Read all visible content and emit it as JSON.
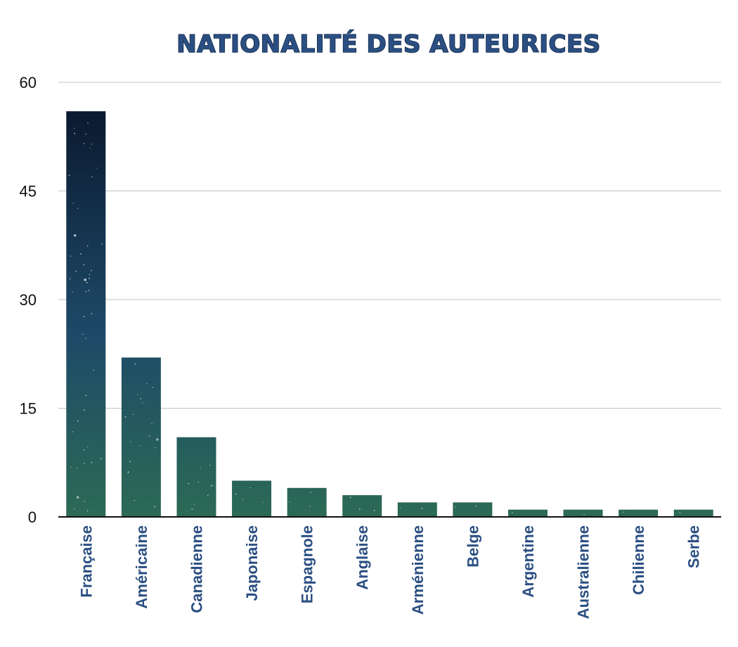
{
  "chart_data": {
    "type": "bar",
    "title": "NATIONALITÉ DES AUTEURICES",
    "xlabel": "",
    "ylabel": "",
    "categories": [
      "Française",
      "Américaine",
      "Canadienne",
      "Japonaise",
      "Espagnole",
      "Anglaise",
      "Arménienne",
      "Belge",
      "Argentine",
      "Australienne",
      "Chilienne",
      "Serbe"
    ],
    "values": [
      56,
      22,
      11,
      5,
      4,
      3,
      2,
      2,
      1,
      1,
      1,
      1
    ],
    "ylim": [
      0,
      60
    ],
    "yticks": [
      0,
      15,
      30,
      45,
      60
    ],
    "grid": true,
    "legend": "none",
    "colors": {
      "title_fill": "#2b4f82",
      "title_stroke": "#0f2748",
      "bar_top": "#0b1a30",
      "bar_mid": "#1d4a68",
      "bar_bottom": "#2c6a55",
      "tick_label": "#2b4f82"
    }
  }
}
